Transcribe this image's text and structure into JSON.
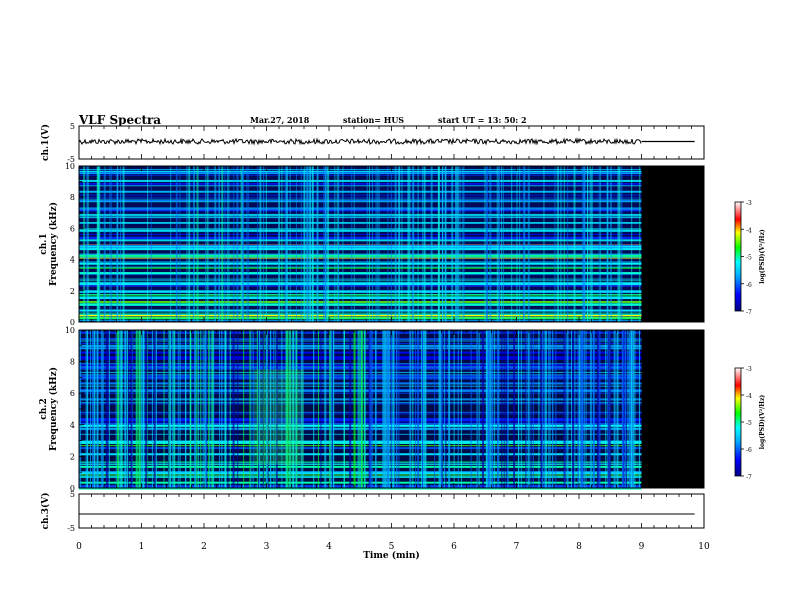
{
  "header": {
    "title": "VLF Spectra",
    "date": "Mar.27, 2018",
    "station": "station= HUS",
    "start": "start  UT =  13: 50: 2"
  },
  "colorbar": {
    "label": "log(PSD)(V²/Hz)",
    "ticks": [
      "-3",
      "-4",
      "-5",
      "-6",
      "-7"
    ],
    "range": [
      -7,
      -3
    ]
  },
  "chart_data": [
    {
      "type": "line",
      "name": "ch1-waveform",
      "ylabel": "ch.1(V)",
      "ylim": [
        -5,
        5
      ],
      "yticks": [
        "5",
        "-5"
      ],
      "x": [
        0,
        9,
        9.85
      ],
      "y": [
        0,
        0,
        0
      ],
      "xlim": [
        0,
        10
      ]
    },
    {
      "type": "heatmap",
      "name": "ch1-spectrogram",
      "ylabel": "ch.1\nFrequency (kHz)",
      "ylim": [
        0,
        10
      ],
      "yticks": [
        "0",
        "2",
        "4",
        "6",
        "8",
        "10"
      ],
      "xlim": [
        0,
        10
      ],
      "data_extent_min": 9.0,
      "colorscale": "log(PSD)(V²/Hz)",
      "zlim": [
        -7,
        -3
      ]
    },
    {
      "type": "heatmap",
      "name": "ch2-spectrogram",
      "ylabel": "ch.2\nFrequency (kHz)",
      "ylim": [
        0,
        10
      ],
      "yticks": [
        "0",
        "2",
        "4",
        "6",
        "8",
        "10"
      ],
      "xlim": [
        0,
        10
      ],
      "data_extent_min": 9.0,
      "colorscale": "log(PSD)(V²/Hz)",
      "zlim": [
        -7,
        -3
      ]
    },
    {
      "type": "line",
      "name": "ch3-waveform",
      "ylabel": "ch.3(V)",
      "ylim": [
        -5,
        5
      ],
      "yticks": [
        "5",
        "-5"
      ],
      "x": [
        0,
        9.85
      ],
      "y": [
        0,
        0
      ],
      "xlim": [
        0,
        10
      ],
      "xlabel": "Time (min)",
      "xticks": [
        "0",
        "1",
        "2",
        "3",
        "4",
        "5",
        "6",
        "7",
        "8",
        "9",
        "10"
      ]
    }
  ]
}
